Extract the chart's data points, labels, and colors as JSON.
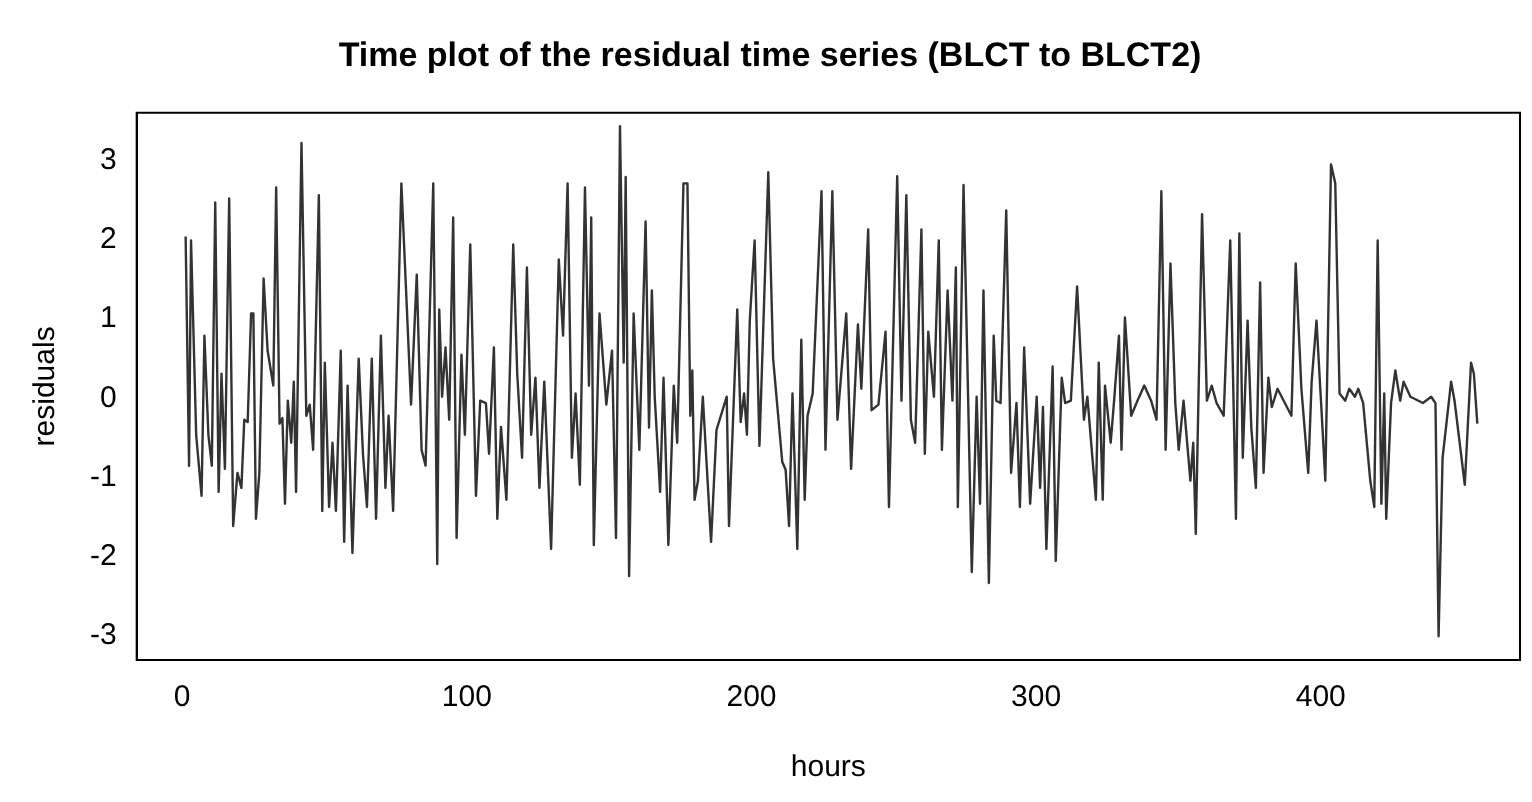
{
  "chart_data": {
    "type": "line",
    "title": "Time plot of the residual time series (BLCT to BLCT2)",
    "xlabel": "hours",
    "ylabel": "residuals",
    "x": [
      1.2,
      2.4,
      3.1,
      4.9,
      6.8,
      7.8,
      9.2,
      10.4,
      11.6,
      12.8,
      13.8,
      15.0,
      16.5,
      17.9,
      19.4,
      20.8,
      21.8,
      23.0,
      24.2,
      25.0,
      25.9,
      27.1,
      28.6,
      30.0,
      32.0,
      33.0,
      34.2,
      35.2,
      36.1,
      37.1,
      38.3,
      39.2,
      40.0,
      41.9,
      43.6,
      44.8,
      46.0,
      48.0,
      49.2,
      50.1,
      51.6,
      52.8,
      54.0,
      55.7,
      56.9,
      58.1,
      59.8,
      62.0,
      63.5,
      64.9,
      66.6,
      68.1,
      69.8,
      71.4,
      72.5,
      74.1,
      77.0,
      80.4,
      82.4,
      84.1,
      85.5,
      88.2,
      89.6,
      90.3,
      91.3,
      92.5,
      93.8,
      95.2,
      96.4,
      98.1,
      99.3,
      101.2,
      103.2,
      104.7,
      106.7,
      107.8,
      109.5,
      110.7,
      112.0,
      113.9,
      116.3,
      117.7,
      119.4,
      121.1,
      122.6,
      124.1,
      125.5,
      127.2,
      129.6,
      132.3,
      133.8,
      135.4,
      136.9,
      138.2,
      139.7,
      141.5,
      142.9,
      143.7,
      144.6,
      146.6,
      149.0,
      151.0,
      152.4,
      153.8,
      155.1,
      155.8,
      157.0,
      158.6,
      160.6,
      162.8,
      164.0,
      165.0,
      166.0,
      167.9,
      169.1,
      170.8,
      172.7,
      173.9,
      176.1,
      177.5,
      178.5,
      179.2,
      180.0,
      181.2,
      182.9,
      185.8,
      187.7,
      191.3,
      192.1,
      195.0,
      196.2,
      197.4,
      198.4,
      199.4,
      201.1,
      202.8,
      205.9,
      207.6,
      210.8,
      212.0,
      213.2,
      214.4,
      216.1,
      217.5,
      218.7,
      219.7,
      221.5,
      224.6,
      226.0,
      228.4,
      230.2,
      233.3,
      235.0,
      237.4,
      238.6,
      241.0,
      242.2,
      244.6,
      247.1,
      248.3,
      251.2,
      252.7,
      254.4,
      256.0,
      257.5,
      259.7,
      260.9,
      262.1,
      264.1,
      265.8,
      266.9,
      268.9,
      270.6,
      271.8,
      272.5,
      274.5,
      276.1,
      277.4,
      279.1,
      280.3,
      281.5,
      283.4,
      285.1,
      286.0,
      287.5,
      289.5,
      291.2,
      293.1,
      294.3,
      295.8,
      297.9,
      300.2,
      301.4,
      302.4,
      303.6,
      305.8,
      306.9,
      309.0,
      310.2,
      312.2,
      314.4,
      316.8,
      318.0,
      321.0,
      322.0,
      323.4,
      324.2,
      326.2,
      327.4,
      329.1,
      330.0,
      331.2,
      333.4,
      335.6,
      338.0,
      340.4,
      342.3,
      344.0,
      345.5,
      347.2,
      348.9,
      350.1,
      351.8,
      354.2,
      355.2,
      356.1,
      358.3,
      360.0,
      361.7,
      363.4,
      365.9,
      368.2,
      370.2,
      371.4,
      372.6,
      374.3,
      375.6,
      377.2,
      378.7,
      379.9,
      381.6,
      382.8,
      384.8,
      389.7,
      391.2,
      393.2,
      395.6,
      396.8,
      398.5,
      400.2,
      401.6,
      403.6,
      405.1,
      406.6,
      408.6,
      410.0,
      412.0,
      413.2,
      414.9,
      417.4,
      418.8,
      420.0,
      421.3,
      422.3,
      423.0,
      424.7,
      426.2,
      427.9,
      429.1,
      431.5,
      435.9,
      438.8,
      440.3,
      441.4,
      442.8,
      445.8,
      447.0,
      450.6,
      452.8,
      453.8,
      455.0
    ],
    "values": [
      2.04,
      -0.85,
      1.99,
      -0.46,
      -1.23,
      0.79,
      -0.46,
      -0.85,
      2.47,
      -1.18,
      0.31,
      -0.89,
      2.52,
      -1.61,
      -0.94,
      -1.13,
      -0.27,
      -0.3,
      1.07,
      1.07,
      -1.52,
      -0.94,
      1.51,
      0.6,
      0.16,
      2.66,
      -0.32,
      -0.25,
      -1.33,
      -0.03,
      -0.56,
      0.21,
      -1.18,
      3.22,
      -0.22,
      -0.08,
      -0.65,
      2.56,
      -1.42,
      0.45,
      -1.37,
      -0.56,
      -1.42,
      0.6,
      -1.81,
      0.16,
      -1.95,
      0.5,
      -0.7,
      -1.37,
      0.5,
      -1.52,
      0.79,
      -1.13,
      -0.22,
      -1.42,
      2.71,
      -0.08,
      1.56,
      -0.65,
      -0.85,
      2.71,
      -2.09,
      1.12,
      0.02,
      0.64,
      -0.27,
      2.28,
      -1.76,
      0.55,
      -0.46,
      1.94,
      -1.23,
      -0.03,
      -0.06,
      -0.7,
      0.64,
      -1.52,
      -0.36,
      -1.28,
      1.94,
      0.31,
      -0.75,
      1.65,
      -0.46,
      0.26,
      -1.13,
      0.21,
      -1.9,
      1.75,
      0.79,
      2.71,
      -0.75,
      0.06,
      -1.09,
      2.66,
      0.16,
      2.28,
      -1.85,
      1.07,
      -0.08,
      0.6,
      -1.76,
      3.43,
      0.45,
      2.79,
      -2.24,
      1.07,
      -0.65,
      2.23,
      -0.37,
      1.36,
      0.02,
      -1.18,
      0.26,
      -1.85,
      0.16,
      -0.56,
      2.71,
      2.71,
      -0.22,
      0.35,
      -1.28,
      -1.04,
      0.02,
      -1.81,
      -0.4,
      0.02,
      -1.61,
      1.12,
      -0.3,
      0.06,
      -0.46,
      0.98,
      1.99,
      -0.6,
      2.85,
      0.5,
      -0.8,
      -0.9,
      -1.61,
      0.06,
      -1.9,
      0.74,
      -1.28,
      -0.22,
      0.06,
      2.61,
      -0.65,
      2.61,
      -0.27,
      1.07,
      -0.89,
      0.93,
      0.12,
      2.13,
      -0.15,
      -0.08,
      0.84,
      -1.37,
      2.8,
      -0.03,
      2.56,
      -0.27,
      -0.56,
      2.13,
      -0.7,
      0.84,
      0.02,
      1.99,
      -0.65,
      1.36,
      -0.03,
      1.65,
      -1.37,
      2.69,
      0.02,
      -2.19,
      0.02,
      -1.33,
      1.36,
      -2.33,
      0.79,
      -0.03,
      -0.06,
      2.37,
      -0.94,
      -0.06,
      -1.37,
      0.64,
      -1.33,
      0.02,
      -1.13,
      -0.11,
      -1.9,
      0.4,
      -2.05,
      0.26,
      -0.06,
      -0.03,
      1.41,
      -0.27,
      0.02,
      -1.28,
      0.45,
      -1.28,
      0.16,
      -0.56,
      -0.03,
      0.79,
      -0.65,
      1.02,
      -0.22,
      -0.03,
      0.16,
      -0.03,
      -0.27,
      2.61,
      -0.65,
      1.7,
      -0.06,
      -0.65,
      -0.03,
      -1.04,
      -0.56,
      -1.71,
      2.32,
      -0.03,
      0.16,
      -0.06,
      -0.22,
      1.99,
      -1.52,
      2.08,
      -0.75,
      0.98,
      -0.37,
      -1.13,
      1.46,
      -0.94,
      0.26,
      -0.11,
      0.12,
      -0.22,
      1.7,
      0.12,
      -0.94,
      0.21,
      0.98,
      -0.11,
      -1.04,
      2.95,
      2.71,
      0.06,
      -0.03,
      0.12,
      0.02,
      0.12,
      -0.06,
      -1.04,
      -1.37,
      1.99,
      -1.33,
      0.06,
      -1.52,
      -0.06,
      0.35,
      -0.03,
      0.21,
      0.02,
      -0.06,
      0.02,
      -0.06,
      -3.0,
      -0.75,
      0.21,
      -0.03,
      -1.09,
      0.45,
      0.31,
      -0.32
    ],
    "color": "#333333",
    "marker": "none",
    "line_style": "solid",
    "grid": false,
    "legend": false,
    "xlim": [
      -16,
      470
    ],
    "ylim": [
      -3.3,
      3.6
    ],
    "xticks": [
      0,
      100,
      200,
      300,
      400
    ],
    "yticks": [
      -3,
      -2,
      -1,
      0,
      1,
      2,
      3
    ]
  }
}
